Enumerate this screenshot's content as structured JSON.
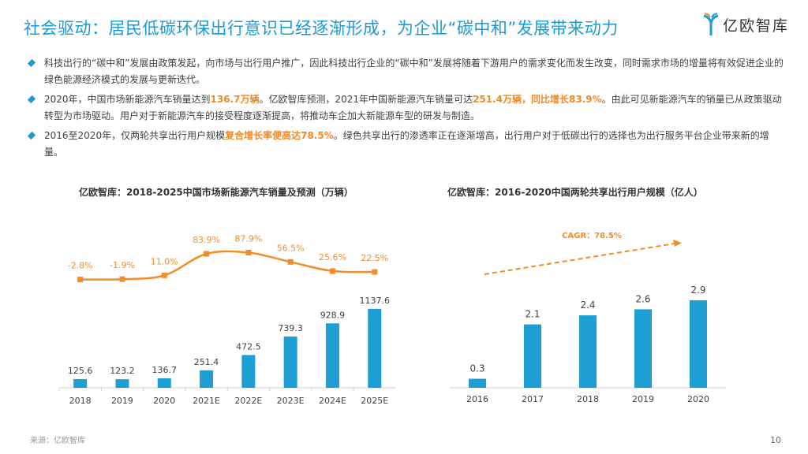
{
  "header": {
    "title": "社会驱动：居民低碳环保出行意识已经逐渐形成，为企业“碳中和”发展带来动力",
    "logo_text": "亿欧智库"
  },
  "bullets": [
    {
      "parts": [
        {
          "t": "科技出行的“碳中和”发展由政策发起，向市场与出行用户推广，因此科技出行企业的“碳中和”发展将随着下游用户的需求变化而发生改变，同时需求市场的增量将有效促进企业的绿色能源经济模式的发展与更新迭代。",
          "h": false
        }
      ]
    },
    {
      "parts": [
        {
          "t": "2020年，中国市场新能源汽车销量达到",
          "h": false
        },
        {
          "t": "136.7万辆",
          "h": true
        },
        {
          "t": "。亿欧智库预测，2021年中国新能源汽车销量可达",
          "h": false
        },
        {
          "t": "251.4万辆，同比增长83.9%",
          "h": true
        },
        {
          "t": "。由此可见新能源汽车的销量已从政策驱动转型为市场驱动。用户对于新能源汽车的接受程度逐渐提高，将推动车企加大新能源车型的研发与制造。",
          "h": false
        }
      ]
    },
    {
      "parts": [
        {
          "t": "2016至2020年，仅两轮共享出行用户规模",
          "h": false
        },
        {
          "t": "复合增长率便高达78.5%",
          "h": true
        },
        {
          "t": "。绿色共享出行的渗透率正在逐渐增高，出行用户对于低碳出行的选择也为出行服务平台企业带来新的增量。",
          "h": false
        }
      ]
    }
  ],
  "colors": {
    "bar": "#1d9fd4",
    "line": "#f28c28",
    "title": "#1b9ad6",
    "highlight": "#f08a24"
  },
  "chart_data": [
    {
      "type": "bar+line",
      "title": "亿欧智库：2018-2025中国市场新能源汽车销量及预测（万辆）",
      "categories": [
        "2018",
        "2019",
        "2020",
        "2021E",
        "2022E",
        "2023E",
        "2024E",
        "2025E"
      ],
      "series": [
        {
          "type": "bar",
          "values": [
            125.6,
            123.2,
            136.7,
            251.4,
            472.5,
            739.3,
            928.9,
            1137.6
          ],
          "labels": [
            "125.6",
            "123.2",
            "136.7",
            "251.4",
            "472.5",
            "739.3",
            "928.9",
            "1137.6"
          ]
        },
        {
          "type": "line",
          "values": [
            -2.8,
            -1.9,
            11.0,
            83.9,
            87.9,
            56.5,
            25.6,
            22.5
          ],
          "labels": [
            "-2.8%",
            "-1.9%",
            "11.0%",
            "83.9%",
            "87.9%",
            "56.5%",
            "25.6%",
            "22.5%"
          ]
        }
      ],
      "grid": false
    },
    {
      "type": "bar",
      "title": "亿欧智库：2016-2020中国两轮共享出行用户规模（亿人）",
      "categories": [
        "2016",
        "2017",
        "2018",
        "2019",
        "2020"
      ],
      "values": [
        0.3,
        2.1,
        2.4,
        2.6,
        2.9
      ],
      "labels": [
        "0.3",
        "2.1",
        "2.4",
        "2.6",
        "2.9"
      ],
      "annotation": "CAGR：78.5%",
      "grid": false
    }
  ],
  "footer": {
    "source": "来源：亿欧智库",
    "page": "10"
  }
}
